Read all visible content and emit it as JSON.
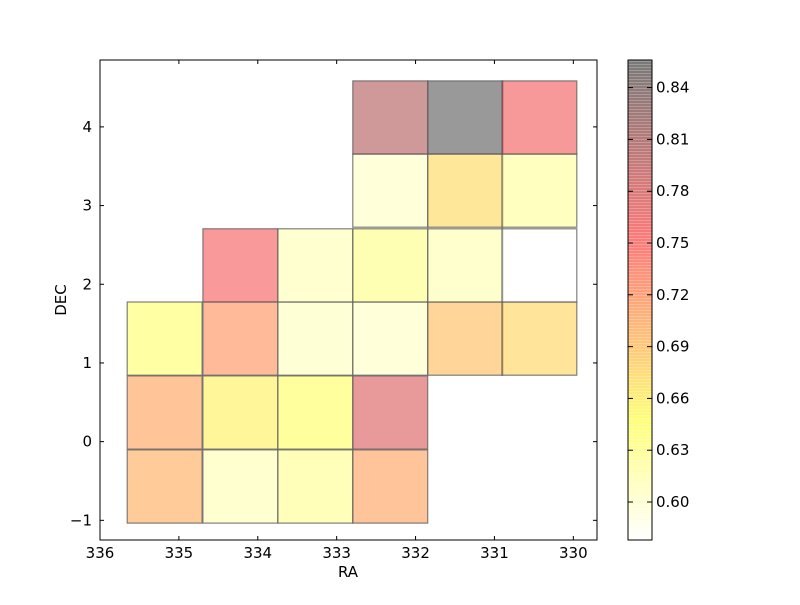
{
  "chart_data": {
    "type": "heatmap",
    "xlabel": "RA",
    "ylabel": "DEC",
    "x_axis_inverted": true,
    "xlim": [
      336.0,
      329.7
    ],
    "ylim": [
      -1.25,
      4.85
    ],
    "x_ticks": [
      336,
      335,
      334,
      333,
      332,
      331,
      330
    ],
    "y_ticks": [
      -1,
      0,
      1,
      2,
      3,
      4
    ],
    "colorbar": {
      "colormap": "hot_r",
      "range": [
        0.578,
        0.856
      ],
      "ticks": [
        0.6,
        0.63,
        0.66,
        0.69,
        0.72,
        0.75,
        0.78,
        0.81,
        0.84
      ],
      "tick_labels": [
        "0.60",
        "0.63",
        "0.66",
        "0.69",
        "0.72",
        "0.75",
        "0.78",
        "0.81",
        "0.84"
      ]
    },
    "cell_size": {
      "ra": 0.95,
      "dec": 0.93
    },
    "cells": [
      {
        "ra": 335.18,
        "dec": -0.57,
        "value": 0.7
      },
      {
        "ra": 334.22,
        "dec": -0.57,
        "value": 0.61
      },
      {
        "ra": 333.27,
        "dec": -0.57,
        "value": 0.625
      },
      {
        "ra": 332.32,
        "dec": -0.57,
        "value": 0.708
      },
      {
        "ra": 335.18,
        "dec": 0.37,
        "value": 0.707
      },
      {
        "ra": 334.22,
        "dec": 0.37,
        "value": 0.658
      },
      {
        "ra": 333.27,
        "dec": 0.37,
        "value": 0.645
      },
      {
        "ra": 332.32,
        "dec": 0.37,
        "value": 0.775
      },
      {
        "ra": 335.18,
        "dec": 1.31,
        "value": 0.64
      },
      {
        "ra": 334.22,
        "dec": 1.31,
        "value": 0.718
      },
      {
        "ra": 333.27,
        "dec": 1.31,
        "value": 0.607
      },
      {
        "ra": 332.32,
        "dec": 1.31,
        "value": 0.603
      },
      {
        "ra": 331.37,
        "dec": 1.31,
        "value": 0.69
      },
      {
        "ra": 330.43,
        "dec": 1.31,
        "value": 0.675
      },
      {
        "ra": 334.22,
        "dec": 2.24,
        "value": 0.758
      },
      {
        "ra": 333.27,
        "dec": 2.24,
        "value": 0.61
      },
      {
        "ra": 332.32,
        "dec": 2.24,
        "value": 0.63
      },
      {
        "ra": 331.37,
        "dec": 2.24,
        "value": 0.612
      },
      {
        "ra": 330.43,
        "dec": 2.24,
        "value": 0.578
      },
      {
        "ra": 332.32,
        "dec": 3.19,
        "value": 0.603
      },
      {
        "ra": 331.37,
        "dec": 3.19,
        "value": 0.672
      },
      {
        "ra": 330.43,
        "dec": 3.19,
        "value": 0.622
      },
      {
        "ra": 332.32,
        "dec": 4.12,
        "value": 0.8
      },
      {
        "ra": 331.37,
        "dec": 4.12,
        "value": 0.856
      },
      {
        "ra": 330.43,
        "dec": 4.12,
        "value": 0.76
      }
    ]
  }
}
